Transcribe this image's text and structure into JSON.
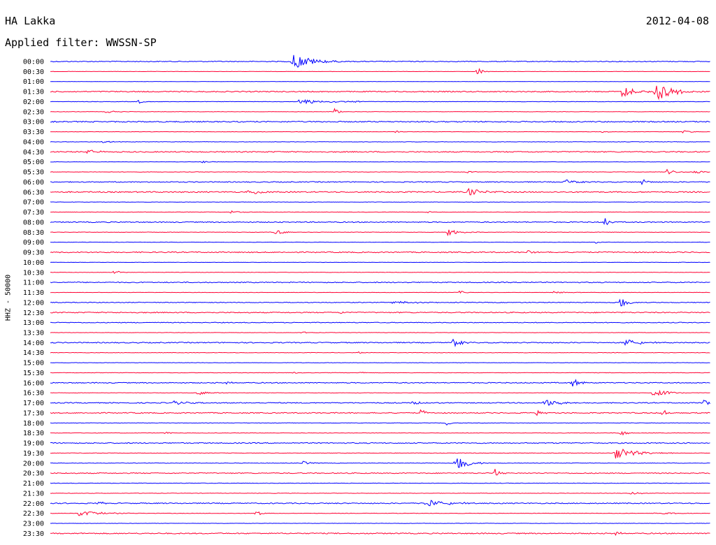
{
  "header": {
    "station": "HA Lakka",
    "date": "2012-04-08",
    "filter_text": "Applied filter: WWSSN-SP"
  },
  "colors": {
    "even_trace": "#0000ff",
    "odd_trace": "#ff0033",
    "text": "#000000"
  },
  "chart_data": {
    "type": "line",
    "ylabel": "HHZ - 50000",
    "row_labels": [
      "00:00",
      "00:30",
      "01:00",
      "01:30",
      "02:00",
      "02:30",
      "03:00",
      "03:30",
      "04:00",
      "04:30",
      "05:00",
      "05:30",
      "06:00",
      "06:30",
      "07:00",
      "07:30",
      "08:00",
      "08:30",
      "09:00",
      "09:30",
      "10:00",
      "10:30",
      "11:00",
      "11:30",
      "12:00",
      "12:30",
      "13:00",
      "13:30",
      "14:00",
      "14:30",
      "15:00",
      "15:30",
      "16:00",
      "16:30",
      "17:00",
      "17:30",
      "18:00",
      "18:30",
      "19:00",
      "19:30",
      "20:00",
      "20:30",
      "21:00",
      "21:30",
      "22:00",
      "22:30",
      "23:00",
      "23:30"
    ],
    "row_duration_min": 30,
    "noise_level": [
      1.2,
      0.4,
      0.3,
      1.5,
      0.6,
      0.5,
      1.6,
      0.5,
      0.6,
      1.5,
      0.4,
      0.6,
      1.3,
      1.6,
      0.5,
      0.6,
      1.4,
      0.6,
      0.5,
      1.5,
      0.4,
      0.5,
      1.3,
      0.5,
      1.0,
      1.4,
      1.0,
      0.5,
      1.4,
      0.6,
      0.5,
      0.6,
      1.3,
      0.5,
      1.3,
      1.4,
      0.6,
      0.6,
      1.4,
      0.7,
      0.7,
      1.3,
      0.7,
      0.6,
      1.4,
      0.6,
      0.5,
      1.5
    ],
    "events": [
      {
        "row": 0,
        "t": 11.0,
        "amp": 12,
        "dur": 0.8
      },
      {
        "row": 1,
        "t": 19.4,
        "amp": 7,
        "dur": 0.2
      },
      {
        "row": 3,
        "t": 26.0,
        "amp": 10,
        "dur": 0.5
      },
      {
        "row": 3,
        "t": 27.5,
        "amp": 14,
        "dur": 0.7
      },
      {
        "row": 4,
        "t": 4.0,
        "amp": 3,
        "dur": 0.2
      },
      {
        "row": 4,
        "t": 11.3,
        "amp": 4,
        "dur": 1.2
      },
      {
        "row": 4,
        "t": 13.9,
        "amp": 2,
        "dur": 0.2
      },
      {
        "row": 5,
        "t": 2.5,
        "amp": 2,
        "dur": 0.4
      },
      {
        "row": 5,
        "t": 12.9,
        "amp": 5,
        "dur": 0.2
      },
      {
        "row": 7,
        "t": 15.7,
        "amp": 1.5,
        "dur": 0.2
      },
      {
        "row": 7,
        "t": 25.1,
        "amp": 2,
        "dur": 0.2
      },
      {
        "row": 7,
        "t": 28.7,
        "amp": 2,
        "dur": 0.4
      },
      {
        "row": 8,
        "t": 2.3,
        "amp": 1.5,
        "dur": 0.5
      },
      {
        "row": 9,
        "t": 1.7,
        "amp": 6,
        "dur": 0.3
      },
      {
        "row": 10,
        "t": 6.9,
        "amp": 1.5,
        "dur": 0.4
      },
      {
        "row": 11,
        "t": 18.9,
        "amp": 3,
        "dur": 0.2
      },
      {
        "row": 11,
        "t": 28.0,
        "amp": 4,
        "dur": 0.4
      },
      {
        "row": 11,
        "t": 29.2,
        "amp": 3,
        "dur": 0.4
      },
      {
        "row": 12,
        "t": 23.4,
        "amp": 4,
        "dur": 0.4
      },
      {
        "row": 12,
        "t": 26.9,
        "amp": 5,
        "dur": 0.2
      },
      {
        "row": 13,
        "t": 8.9,
        "amp": 3,
        "dur": 0.3
      },
      {
        "row": 13,
        "t": 9.3,
        "amp": 4,
        "dur": 0.4
      },
      {
        "row": 13,
        "t": 19.0,
        "amp": 6,
        "dur": 0.5
      },
      {
        "row": 15,
        "t": 8.2,
        "amp": 2,
        "dur": 0.4
      },
      {
        "row": 15,
        "t": 17.1,
        "amp": 2,
        "dur": 0.2
      },
      {
        "row": 16,
        "t": 25.2,
        "amp": 7,
        "dur": 0.2
      },
      {
        "row": 17,
        "t": 10.2,
        "amp": 4,
        "dur": 0.4
      },
      {
        "row": 17,
        "t": 18.0,
        "amp": 5,
        "dur": 0.5
      },
      {
        "row": 18,
        "t": 24.8,
        "amp": 2,
        "dur": 0.2
      },
      {
        "row": 19,
        "t": 21.7,
        "amp": 3,
        "dur": 0.3
      },
      {
        "row": 20,
        "t": 28.6,
        "amp": 1.5,
        "dur": 0.2
      },
      {
        "row": 21,
        "t": 2.9,
        "amp": 6,
        "dur": 0.2
      },
      {
        "row": 22,
        "t": 21.5,
        "amp": 3,
        "dur": 0.2
      },
      {
        "row": 23,
        "t": 18.6,
        "amp": 3,
        "dur": 0.2
      },
      {
        "row": 23,
        "t": 22.8,
        "amp": 1.5,
        "dur": 0.8
      },
      {
        "row": 24,
        "t": 15.5,
        "amp": 2,
        "dur": 1.3
      },
      {
        "row": 24,
        "t": 25.9,
        "amp": 8,
        "dur": 0.3
      },
      {
        "row": 25,
        "t": 13.2,
        "amp": 2,
        "dur": 0.2
      },
      {
        "row": 27,
        "t": 11.4,
        "amp": 2,
        "dur": 0.2
      },
      {
        "row": 28,
        "t": 18.3,
        "amp": 7,
        "dur": 0.3
      },
      {
        "row": 28,
        "t": 26.1,
        "amp": 6,
        "dur": 0.6
      },
      {
        "row": 29,
        "t": 14.0,
        "amp": 1.5,
        "dur": 0.2
      },
      {
        "row": 31,
        "t": 11.0,
        "amp": 1.5,
        "dur": 0.2
      },
      {
        "row": 31,
        "t": 14.1,
        "amp": 2,
        "dur": 0.2
      },
      {
        "row": 32,
        "t": 8.0,
        "amp": 2,
        "dur": 0.2
      },
      {
        "row": 32,
        "t": 23.7,
        "amp": 7,
        "dur": 0.3
      },
      {
        "row": 33,
        "t": 6.7,
        "amp": 3,
        "dur": 0.5
      },
      {
        "row": 33,
        "t": 27.4,
        "amp": 7,
        "dur": 0.5
      },
      {
        "row": 34,
        "t": 5.6,
        "amp": 3,
        "dur": 0.5
      },
      {
        "row": 34,
        "t": 16.4,
        "amp": 3,
        "dur": 0.5
      },
      {
        "row": 34,
        "t": 22.4,
        "amp": 6,
        "dur": 0.6
      },
      {
        "row": 34,
        "t": 29.7,
        "amp": 7,
        "dur": 0.2
      },
      {
        "row": 35,
        "t": 16.8,
        "amp": 6,
        "dur": 0.2
      },
      {
        "row": 35,
        "t": 22.1,
        "amp": 5,
        "dur": 0.2
      },
      {
        "row": 35,
        "t": 27.8,
        "amp": 6,
        "dur": 0.2
      },
      {
        "row": 36,
        "t": 18.0,
        "amp": 3,
        "dur": 0.2
      },
      {
        "row": 37,
        "t": 5.2,
        "amp": 1.5,
        "dur": 0.4
      },
      {
        "row": 37,
        "t": 25.9,
        "amp": 7,
        "dur": 0.2
      },
      {
        "row": 39,
        "t": 25.6,
        "amp": 9,
        "dur": 0.9
      },
      {
        "row": 40,
        "t": 11.5,
        "amp": 3,
        "dur": 0.3
      },
      {
        "row": 40,
        "t": 18.4,
        "amp": 12,
        "dur": 0.5
      },
      {
        "row": 41,
        "t": 20.2,
        "amp": 7,
        "dur": 0.2
      },
      {
        "row": 43,
        "t": 26.4,
        "amp": 2,
        "dur": 0.4
      },
      {
        "row": 44,
        "t": 2.2,
        "amp": 3,
        "dur": 0.2
      },
      {
        "row": 44,
        "t": 16.9,
        "amp": 6,
        "dur": 1.0
      },
      {
        "row": 45,
        "t": 1.3,
        "amp": 4,
        "dur": 0.9
      },
      {
        "row": 45,
        "t": 9.3,
        "amp": 7,
        "dur": 0.2
      },
      {
        "row": 45,
        "t": 27.5,
        "amp": 3,
        "dur": 0.5
      },
      {
        "row": 47,
        "t": 25.7,
        "amp": 3,
        "dur": 0.2
      }
    ]
  }
}
